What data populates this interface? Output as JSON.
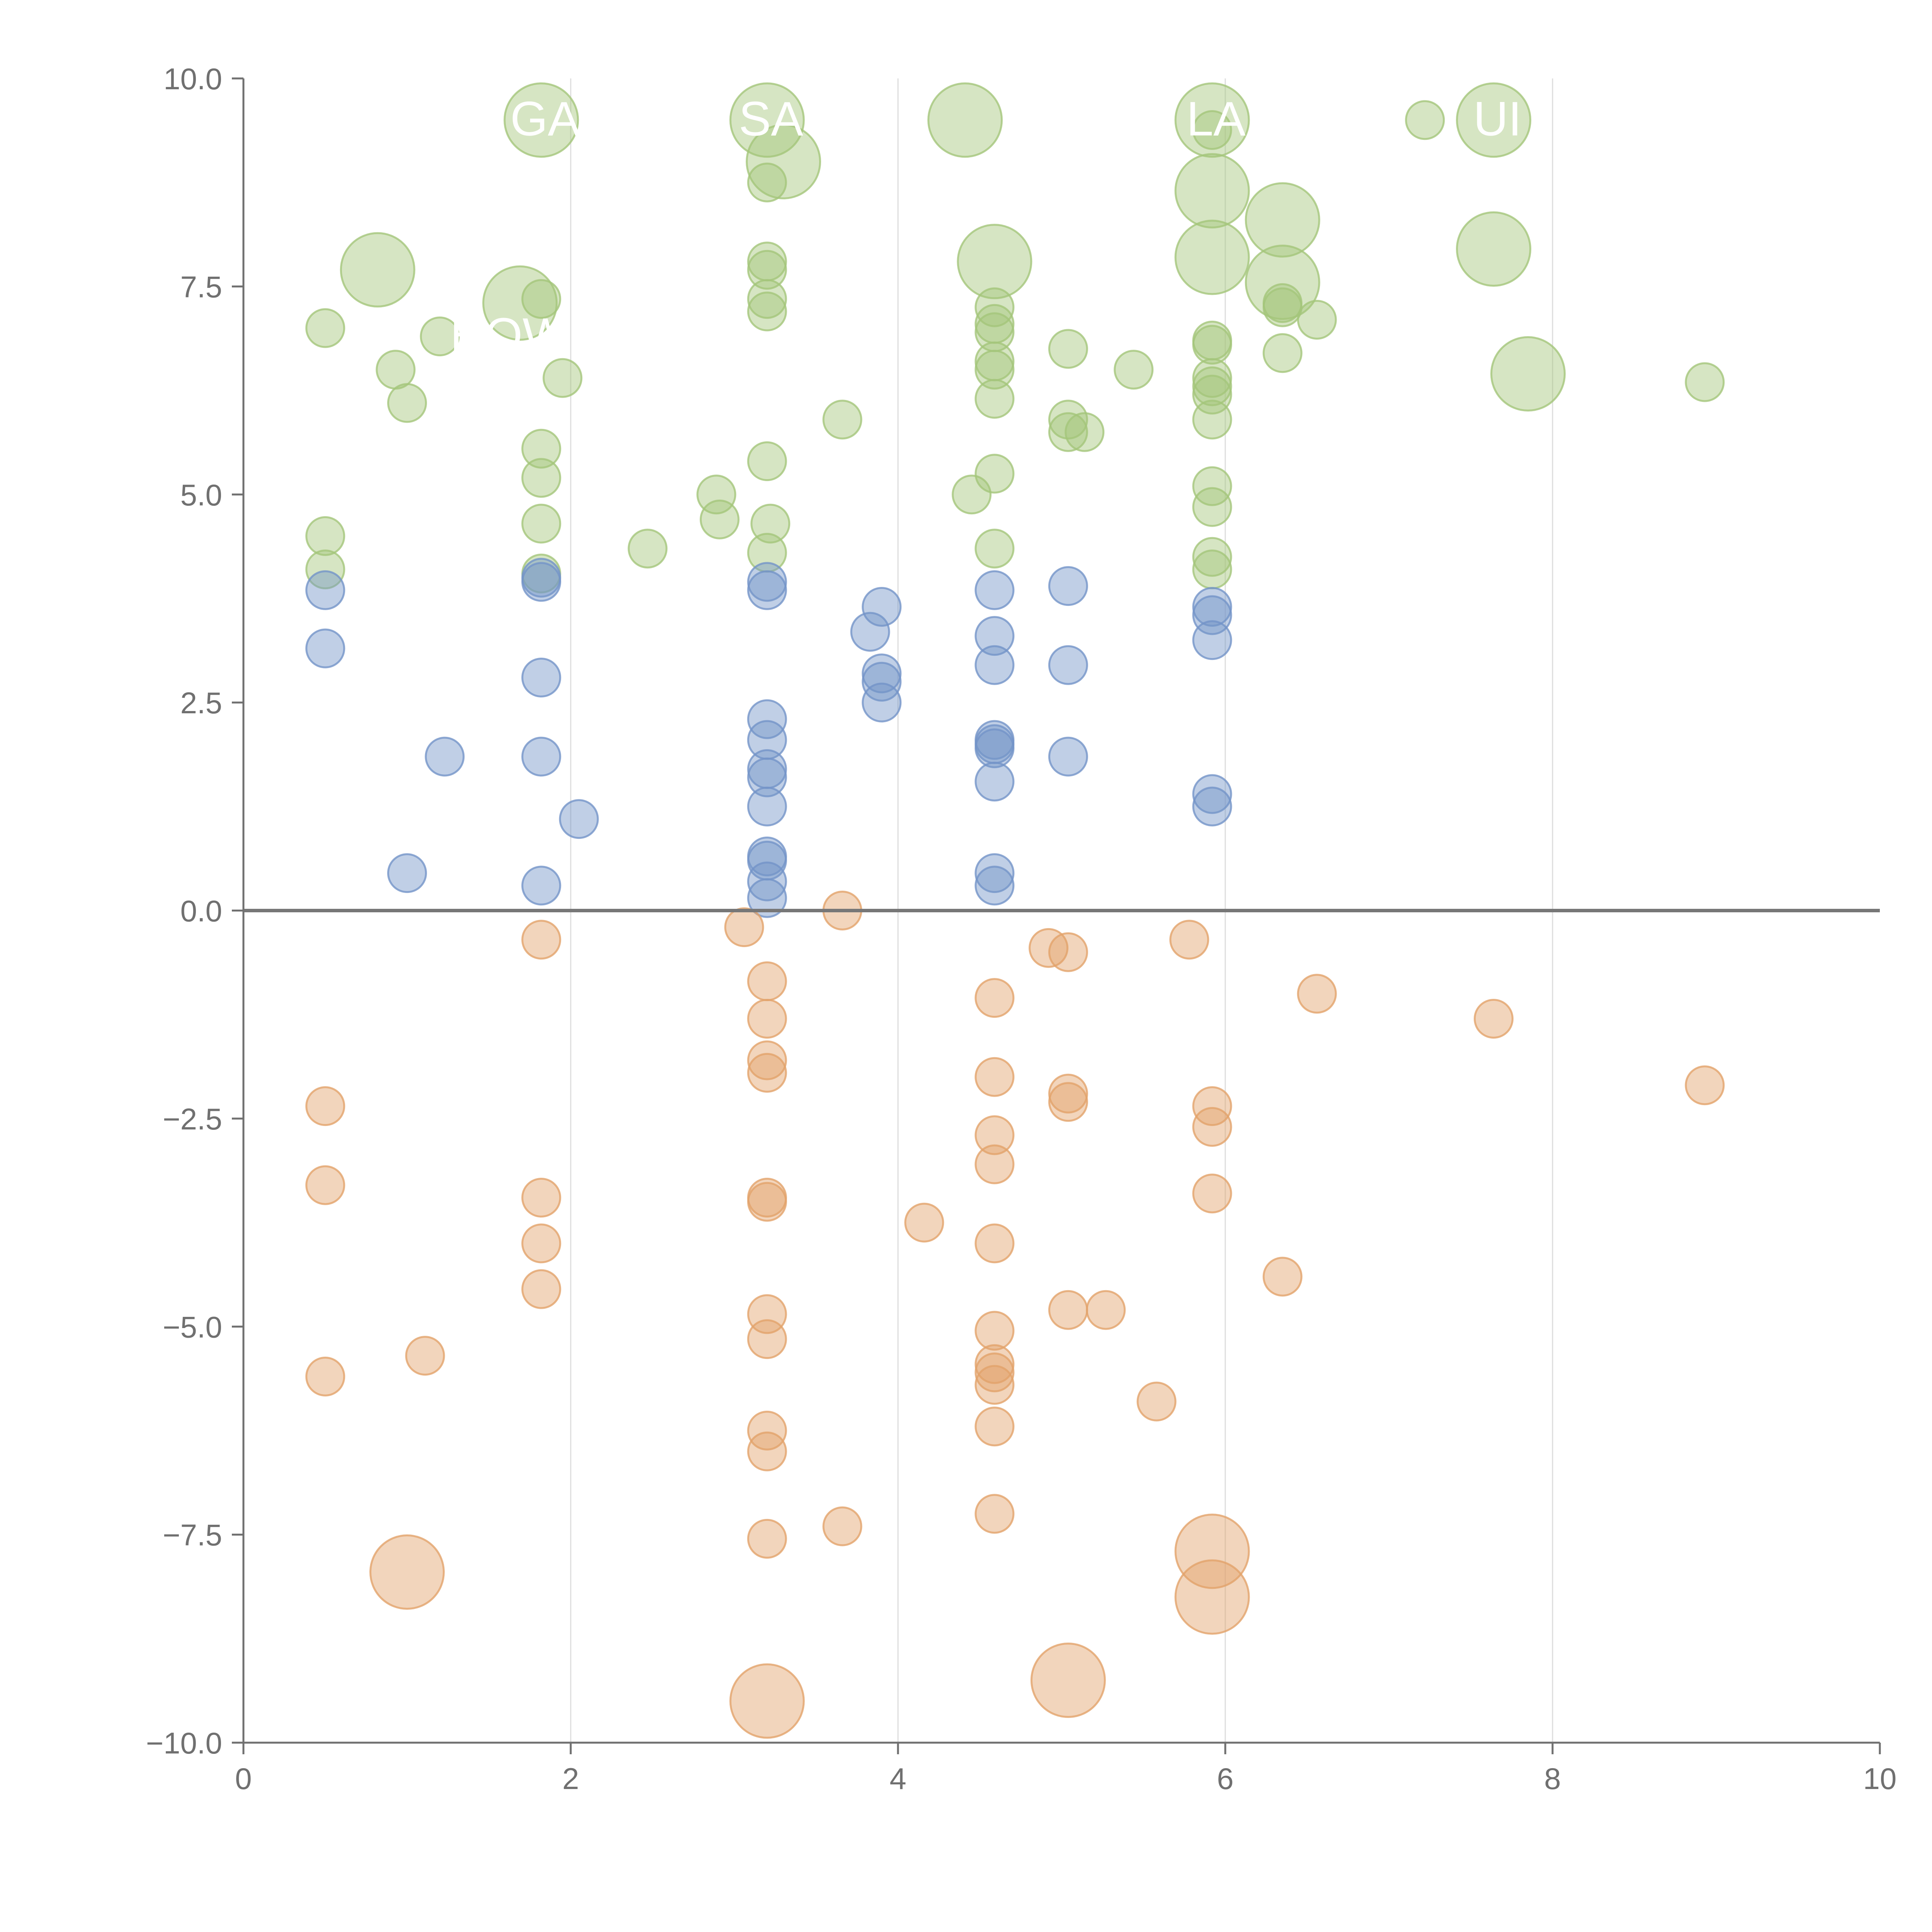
{
  "chart_data": {
    "type": "scatter",
    "subtype": "bubble",
    "title": "",
    "xlabel": "",
    "ylabel": "",
    "xlim": [
      0,
      10
    ],
    "ylim": [
      -10,
      10
    ],
    "xticks": [
      0,
      2,
      4,
      6,
      8,
      10
    ],
    "xtick_labels": [
      "0",
      "2",
      "4",
      "6",
      "8",
      "10"
    ],
    "yticks": [
      10,
      7.5,
      5,
      2.5,
      0,
      -2.5,
      -5,
      -7.5,
      -10
    ],
    "ytick_labels": [
      "10.0",
      "7.5",
      "5.0",
      "2.5",
      "0.0",
      "−2.5",
      "−5.0",
      "−7.5",
      "−10.0"
    ],
    "vertical_gridlines_at": [
      2,
      4,
      6,
      8
    ],
    "zero_line": true,
    "colors": {
      "green": "#a4c57a",
      "blue": "#7394c8",
      "orange": "#e2a26a",
      "axis": "#707070",
      "grid": "#dddddd",
      "zero_line": "#777777",
      "label_text": "#ffffff"
    },
    "size_note": "r is relative bubble size: 1 = small, 2 = large",
    "series": [
      {
        "name": "green",
        "color": "#a4c57a",
        "points": [
          {
            "x": 0.5,
            "y": 7.0,
            "r": 1
          },
          {
            "x": 0.5,
            "y": 4.5,
            "r": 1
          },
          {
            "x": 0.5,
            "y": 4.1,
            "r": 1
          },
          {
            "x": 0.82,
            "y": 7.7,
            "r": 2
          },
          {
            "x": 0.93,
            "y": 6.5,
            "r": 1
          },
          {
            "x": 1.0,
            "y": 6.1,
            "r": 1
          },
          {
            "x": 1.2,
            "y": 6.9,
            "r": 1
          },
          {
            "x": 1.69,
            "y": 7.3,
            "r": 2
          },
          {
            "x": 1.82,
            "y": 9.5,
            "r": 2
          },
          {
            "x": 1.82,
            "y": 7.35,
            "r": 1
          },
          {
            "x": 1.82,
            "y": 5.55,
            "r": 1
          },
          {
            "x": 1.82,
            "y": 5.2,
            "r": 1
          },
          {
            "x": 1.82,
            "y": 4.65,
            "r": 1
          },
          {
            "x": 1.82,
            "y": 4.05,
            "r": 1
          },
          {
            "x": 1.95,
            "y": 6.4,
            "r": 1
          },
          {
            "x": 2.47,
            "y": 4.35,
            "r": 1
          },
          {
            "x": 2.89,
            "y": 5.0,
            "r": 1
          },
          {
            "x": 2.91,
            "y": 4.7,
            "r": 1
          },
          {
            "x": 3.2,
            "y": 9.5,
            "r": 2
          },
          {
            "x": 3.3,
            "y": 9.0,
            "r": 2
          },
          {
            "x": 3.2,
            "y": 8.75,
            "r": 1
          },
          {
            "x": 3.2,
            "y": 7.8,
            "r": 1
          },
          {
            "x": 3.2,
            "y": 7.7,
            "r": 1
          },
          {
            "x": 3.2,
            "y": 7.35,
            "r": 1
          },
          {
            "x": 3.2,
            "y": 7.2,
            "r": 1
          },
          {
            "x": 3.2,
            "y": 5.4,
            "r": 1
          },
          {
            "x": 3.22,
            "y": 4.65,
            "r": 1
          },
          {
            "x": 3.2,
            "y": 4.3,
            "r": 1
          },
          {
            "x": 3.66,
            "y": 5.9,
            "r": 1
          },
          {
            "x": 4.41,
            "y": 9.5,
            "r": 2
          },
          {
            "x": 4.59,
            "y": 7.8,
            "r": 2
          },
          {
            "x": 4.59,
            "y": 7.25,
            "r": 1
          },
          {
            "x": 4.59,
            "y": 7.05,
            "r": 1
          },
          {
            "x": 4.59,
            "y": 6.95,
            "r": 1
          },
          {
            "x": 4.59,
            "y": 6.6,
            "r": 1
          },
          {
            "x": 4.59,
            "y": 6.5,
            "r": 1
          },
          {
            "x": 4.59,
            "y": 6.15,
            "r": 1
          },
          {
            "x": 4.59,
            "y": 5.25,
            "r": 1
          },
          {
            "x": 4.45,
            "y": 5.0,
            "r": 1
          },
          {
            "x": 4.59,
            "y": 4.35,
            "r": 1
          },
          {
            "x": 5.04,
            "y": 6.75,
            "r": 1
          },
          {
            "x": 5.04,
            "y": 5.9,
            "r": 1
          },
          {
            "x": 5.04,
            "y": 5.75,
            "r": 1
          },
          {
            "x": 5.14,
            "y": 5.75,
            "r": 1
          },
          {
            "x": 5.44,
            "y": 6.5,
            "r": 1
          },
          {
            "x": 5.92,
            "y": 9.5,
            "r": 2
          },
          {
            "x": 5.92,
            "y": 9.38,
            "r": 1
          },
          {
            "x": 5.92,
            "y": 8.65,
            "r": 2
          },
          {
            "x": 5.92,
            "y": 7.85,
            "r": 2
          },
          {
            "x": 5.92,
            "y": 6.85,
            "r": 1
          },
          {
            "x": 5.92,
            "y": 6.8,
            "r": 1
          },
          {
            "x": 5.92,
            "y": 6.4,
            "r": 1
          },
          {
            "x": 5.92,
            "y": 6.3,
            "r": 1
          },
          {
            "x": 5.92,
            "y": 6.2,
            "r": 1
          },
          {
            "x": 5.92,
            "y": 5.9,
            "r": 1
          },
          {
            "x": 5.92,
            "y": 5.1,
            "r": 1
          },
          {
            "x": 5.92,
            "y": 4.85,
            "r": 1
          },
          {
            "x": 5.92,
            "y": 4.25,
            "r": 1
          },
          {
            "x": 5.92,
            "y": 4.1,
            "r": 1
          },
          {
            "x": 6.35,
            "y": 8.3,
            "r": 2
          },
          {
            "x": 6.35,
            "y": 7.55,
            "r": 2
          },
          {
            "x": 6.35,
            "y": 7.3,
            "r": 1
          },
          {
            "x": 6.35,
            "y": 7.25,
            "r": 1
          },
          {
            "x": 6.35,
            "y": 6.7,
            "r": 1
          },
          {
            "x": 6.56,
            "y": 7.1,
            "r": 1
          },
          {
            "x": 7.22,
            "y": 9.5,
            "r": 1
          },
          {
            "x": 7.64,
            "y": 9.5,
            "r": 2
          },
          {
            "x": 7.64,
            "y": 7.95,
            "r": 2
          },
          {
            "x": 7.85,
            "y": 6.45,
            "r": 2
          },
          {
            "x": 8.93,
            "y": 6.35,
            "r": 1
          }
        ]
      },
      {
        "name": "blue",
        "color": "#7394c8",
        "points": [
          {
            "x": 0.5,
            "y": 3.85,
            "r": 1
          },
          {
            "x": 0.5,
            "y": 3.15,
            "r": 1
          },
          {
            "x": 1.0,
            "y": 0.45,
            "r": 1
          },
          {
            "x": 1.23,
            "y": 1.85,
            "r": 1
          },
          {
            "x": 1.82,
            "y": 4.0,
            "r": 1
          },
          {
            "x": 1.82,
            "y": 3.95,
            "r": 1
          },
          {
            "x": 1.82,
            "y": 2.8,
            "r": 1
          },
          {
            "x": 1.82,
            "y": 1.85,
            "r": 1
          },
          {
            "x": 1.82,
            "y": 0.3,
            "r": 1
          },
          {
            "x": 2.05,
            "y": 1.1,
            "r": 1
          },
          {
            "x": 3.2,
            "y": 3.95,
            "r": 1
          },
          {
            "x": 3.2,
            "y": 3.85,
            "r": 1
          },
          {
            "x": 3.2,
            "y": 2.3,
            "r": 1
          },
          {
            "x": 3.2,
            "y": 2.05,
            "r": 1
          },
          {
            "x": 3.2,
            "y": 1.7,
            "r": 1
          },
          {
            "x": 3.2,
            "y": 1.6,
            "r": 1
          },
          {
            "x": 3.2,
            "y": 1.25,
            "r": 1
          },
          {
            "x": 3.2,
            "y": 0.65,
            "r": 1
          },
          {
            "x": 3.2,
            "y": 0.6,
            "r": 1
          },
          {
            "x": 3.2,
            "y": 0.35,
            "r": 1
          },
          {
            "x": 3.2,
            "y": 0.15,
            "r": 1
          },
          {
            "x": 3.83,
            "y": 3.35,
            "r": 1
          },
          {
            "x": 3.9,
            "y": 3.65,
            "r": 1
          },
          {
            "x": 3.9,
            "y": 2.85,
            "r": 1
          },
          {
            "x": 3.9,
            "y": 2.75,
            "r": 1
          },
          {
            "x": 3.9,
            "y": 2.5,
            "r": 1
          },
          {
            "x": 4.59,
            "y": 3.85,
            "r": 1
          },
          {
            "x": 4.59,
            "y": 3.3,
            "r": 1
          },
          {
            "x": 4.59,
            "y": 2.95,
            "r": 1
          },
          {
            "x": 4.59,
            "y": 2.05,
            "r": 1
          },
          {
            "x": 4.59,
            "y": 2.0,
            "r": 1
          },
          {
            "x": 4.59,
            "y": 1.95,
            "r": 1
          },
          {
            "x": 4.59,
            "y": 1.55,
            "r": 1
          },
          {
            "x": 4.59,
            "y": 0.45,
            "r": 1
          },
          {
            "x": 4.59,
            "y": 0.3,
            "r": 1
          },
          {
            "x": 5.04,
            "y": 3.9,
            "r": 1
          },
          {
            "x": 5.04,
            "y": 2.95,
            "r": 1
          },
          {
            "x": 5.04,
            "y": 1.85,
            "r": 1
          },
          {
            "x": 5.92,
            "y": 3.65,
            "r": 1
          },
          {
            "x": 5.92,
            "y": 3.55,
            "r": 1
          },
          {
            "x": 5.92,
            "y": 3.25,
            "r": 1
          },
          {
            "x": 5.92,
            "y": 1.4,
            "r": 1
          },
          {
            "x": 5.92,
            "y": 1.25,
            "r": 1
          }
        ]
      },
      {
        "name": "orange",
        "color": "#e2a26a",
        "points": [
          {
            "x": 0.5,
            "y": -2.35,
            "r": 1
          },
          {
            "x": 0.5,
            "y": -3.3,
            "r": 1
          },
          {
            "x": 0.5,
            "y": -5.6,
            "r": 1
          },
          {
            "x": 1.0,
            "y": -7.95,
            "r": 2
          },
          {
            "x": 1.11,
            "y": -5.35,
            "r": 1
          },
          {
            "x": 1.82,
            "y": -0.35,
            "r": 1
          },
          {
            "x": 1.82,
            "y": -3.45,
            "r": 1
          },
          {
            "x": 1.82,
            "y": -4.0,
            "r": 1
          },
          {
            "x": 1.82,
            "y": -4.55,
            "r": 1
          },
          {
            "x": 3.06,
            "y": -0.2,
            "r": 1
          },
          {
            "x": 3.2,
            "y": -0.85,
            "r": 1
          },
          {
            "x": 3.2,
            "y": -1.3,
            "r": 1
          },
          {
            "x": 3.2,
            "y": -1.8,
            "r": 1
          },
          {
            "x": 3.2,
            "y": -1.95,
            "r": 1
          },
          {
            "x": 3.2,
            "y": -3.45,
            "r": 1
          },
          {
            "x": 3.2,
            "y": -3.5,
            "r": 1
          },
          {
            "x": 3.2,
            "y": -4.85,
            "r": 1
          },
          {
            "x": 3.2,
            "y": -5.15,
            "r": 1
          },
          {
            "x": 3.2,
            "y": -6.25,
            "r": 1
          },
          {
            "x": 3.2,
            "y": -6.5,
            "r": 1
          },
          {
            "x": 3.2,
            "y": -7.55,
            "r": 1
          },
          {
            "x": 3.2,
            "y": -9.5,
            "r": 2
          },
          {
            "x": 3.66,
            "y": 0.0,
            "r": 1
          },
          {
            "x": 3.66,
            "y": -7.4,
            "r": 1
          },
          {
            "x": 4.16,
            "y": -3.75,
            "r": 1
          },
          {
            "x": 4.59,
            "y": -1.05,
            "r": 1
          },
          {
            "x": 4.59,
            "y": -2.0,
            "r": 1
          },
          {
            "x": 4.59,
            "y": -2.7,
            "r": 1
          },
          {
            "x": 4.59,
            "y": -3.05,
            "r": 1
          },
          {
            "x": 4.59,
            "y": -4.0,
            "r": 1
          },
          {
            "x": 4.59,
            "y": -5.05,
            "r": 1
          },
          {
            "x": 4.59,
            "y": -5.45,
            "r": 1
          },
          {
            "x": 4.59,
            "y": -5.55,
            "r": 1
          },
          {
            "x": 4.59,
            "y": -5.7,
            "r": 1
          },
          {
            "x": 4.59,
            "y": -6.2,
            "r": 1
          },
          {
            "x": 4.59,
            "y": -7.25,
            "r": 1
          },
          {
            "x": 4.92,
            "y": -0.45,
            "r": 1
          },
          {
            "x": 5.04,
            "y": -0.5,
            "r": 1
          },
          {
            "x": 5.04,
            "y": -2.2,
            "r": 1
          },
          {
            "x": 5.04,
            "y": -2.3,
            "r": 1
          },
          {
            "x": 5.04,
            "y": -4.8,
            "r": 1
          },
          {
            "x": 5.04,
            "y": -9.25,
            "r": 2
          },
          {
            "x": 5.27,
            "y": -4.8,
            "r": 1
          },
          {
            "x": 5.58,
            "y": -5.9,
            "r": 1
          },
          {
            "x": 5.78,
            "y": -0.35,
            "r": 1
          },
          {
            "x": 5.92,
            "y": -2.35,
            "r": 1
          },
          {
            "x": 5.92,
            "y": -2.6,
            "r": 1
          },
          {
            "x": 5.92,
            "y": -3.4,
            "r": 1
          },
          {
            "x": 5.92,
            "y": -7.7,
            "r": 2
          },
          {
            "x": 5.92,
            "y": -8.25,
            "r": 2
          },
          {
            "x": 6.35,
            "y": -4.4,
            "r": 1
          },
          {
            "x": 6.56,
            "y": -1.0,
            "r": 1
          },
          {
            "x": 7.64,
            "y": -1.3,
            "r": 1
          },
          {
            "x": 8.93,
            "y": -2.1,
            "r": 1
          }
        ]
      }
    ],
    "annotations": [
      {
        "text": "GA",
        "x": 1.82,
        "y": 9.5
      },
      {
        "text": "SA",
        "x": 3.2,
        "y": 9.5
      },
      {
        "text": "LA",
        "x": 5.92,
        "y": 9.5
      },
      {
        "text": "UI",
        "x": 7.64,
        "y": 9.5
      },
      {
        "text": "HOW",
        "x": 1.6,
        "y": 6.9
      }
    ]
  }
}
